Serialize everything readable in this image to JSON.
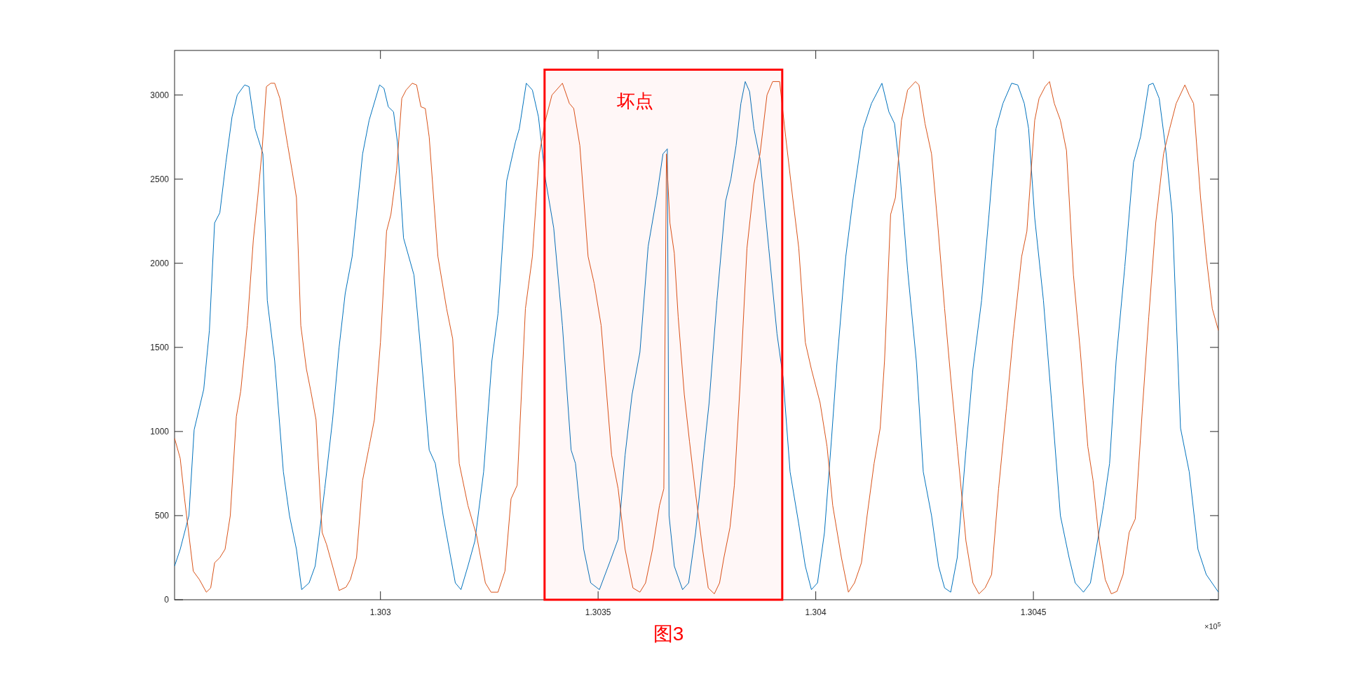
{
  "chart_data": {
    "type": "line",
    "xlim": [
      1.302527,
      1.304925
    ],
    "ylim": [
      0,
      3265
    ],
    "xticks": [
      1.303,
      1.3035,
      1.304,
      1.3045
    ],
    "yticks": [
      0,
      500,
      1000,
      1500,
      2000,
      2500,
      3000
    ],
    "grid": false,
    "marker": "none",
    "line_style": "solid",
    "annotations": [
      "×10$^{5}$",
      "图3"
    ],
    "bands": [
      {
        "axis": "x",
        "from": 1.303377,
        "to": 1.303923,
        "label": "坏点",
        "color": "#ff0000"
      }
    ],
    "series": [
      {
        "color": "#0072bd",
        "x": [
          1.302527,
          1.30254,
          1.30256,
          1.302572,
          1.302594,
          1.302607,
          1.302619,
          1.302631,
          1.302645,
          1.302659,
          1.302671,
          1.302688,
          1.302698,
          1.302712,
          1.30273,
          1.30274,
          1.302757,
          1.302777,
          1.302791,
          1.302807,
          1.302819,
          1.302836,
          1.30285,
          1.30286,
          1.302872,
          1.30289,
          1.302905,
          1.302919,
          1.302935,
          1.302959,
          1.302974,
          1.302998,
          1.303008,
          1.303018,
          1.30303,
          1.303039,
          1.303053,
          1.303077,
          1.303093,
          1.303112,
          1.303126,
          1.303144,
          1.303158,
          1.303172,
          1.303185,
          1.303201,
          1.303217,
          1.303237,
          1.303256,
          1.30327,
          1.30329,
          1.30331,
          1.303319,
          1.303335,
          1.303349,
          1.303363,
          1.303379,
          1.303398,
          1.303418,
          1.303438,
          1.303448,
          1.303467,
          1.303483,
          1.303503,
          1.303527,
          1.303546,
          1.303562,
          1.303578,
          1.303596,
          1.303615,
          1.303635,
          1.303649,
          1.303659,
          1.303663,
          1.303675,
          1.303694,
          1.303708,
          1.303724,
          1.303744,
          1.303755,
          1.303773,
          1.303793,
          1.303805,
          1.303817,
          1.303828,
          1.303838,
          1.303848,
          1.303858,
          1.303872,
          1.303892,
          1.303911,
          1.303925,
          1.303941,
          1.303961,
          1.303976,
          1.30399,
          1.304004,
          1.30402,
          1.304036,
          1.304049,
          1.304069,
          1.304085,
          1.304109,
          1.304128,
          1.304152,
          1.304168,
          1.304181,
          1.304193,
          1.304211,
          1.304231,
          1.304247,
          1.304266,
          1.304282,
          1.304296,
          1.30431,
          1.304325,
          1.304345,
          1.304361,
          1.304381,
          1.304398,
          1.304414,
          1.30443,
          1.30445,
          1.304464,
          1.304479,
          1.304489,
          1.304503,
          1.304523,
          1.304542,
          1.304562,
          1.304582,
          1.304596,
          1.304615,
          1.304631,
          1.304641,
          1.304661,
          1.304675,
          1.30469,
          1.30471,
          1.30473,
          1.304746,
          1.304765,
          1.304775,
          1.304789,
          1.304803,
          1.304819,
          1.304838,
          1.304858,
          1.304878,
          1.304897,
          1.304925
        ],
        "values": [
          200,
          300,
          500,
          1010,
          1250,
          1600,
          2240,
          2300,
          2600,
          2870,
          3000,
          3060,
          3050,
          2800,
          2650,
          1780,
          1420,
          760,
          500,
          300,
          60,
          100,
          200,
          400,
          660,
          1070,
          1500,
          1820,
          2040,
          2650,
          2850,
          3060,
          3040,
          2930,
          2900,
          2720,
          2150,
          1930,
          1470,
          890,
          810,
          500,
          300,
          100,
          60,
          200,
          350,
          760,
          1420,
          1700,
          2490,
          2720,
          2800,
          3070,
          3030,
          2870,
          2500,
          2210,
          1630,
          890,
          810,
          300,
          100,
          60,
          225,
          360,
          860,
          1220,
          1470,
          2100,
          2400,
          2650,
          2680,
          500,
          200,
          60,
          100,
          400,
          900,
          1170,
          1780,
          2370,
          2500,
          2700,
          2950,
          3080,
          3020,
          2800,
          2620,
          2090,
          1580,
          1320,
          760,
          450,
          200,
          60,
          100,
          400,
          950,
          1420,
          2040,
          2370,
          2800,
          2950,
          3070,
          2900,
          2830,
          2550,
          1960,
          1420,
          760,
          500,
          200,
          70,
          45,
          250,
          890,
          1370,
          1780,
          2290,
          2800,
          2950,
          3070,
          3060,
          2950,
          2800,
          2270,
          1780,
          1170,
          500,
          250,
          100,
          45,
          100,
          250,
          560,
          810,
          1420,
          1980,
          2600,
          2750,
          3060,
          3070,
          2980,
          2700,
          2290,
          1020,
          760,
          300,
          150,
          45
        ]
      },
      {
        "color": "#d95319",
        "x": [
          1.302527,
          1.30254,
          1.30255,
          1.30257,
          1.302584,
          1.3026,
          1.30261,
          1.302619,
          1.302631,
          1.302643,
          1.302655,
          1.302669,
          1.302679,
          1.302694,
          1.302708,
          1.302718,
          1.302728,
          1.302738,
          1.302748,
          1.302757,
          1.302769,
          1.302787,
          1.302797,
          1.302807,
          1.302817,
          1.30283,
          1.30284,
          1.302852,
          1.302866,
          1.302876,
          1.30289,
          1.302905,
          1.302921,
          1.302931,
          1.302945,
          1.302959,
          1.302974,
          1.302986,
          1.303,
          1.303014,
          1.303024,
          1.303037,
          1.303049,
          1.303059,
          1.303073,
          1.303083,
          1.303093,
          1.303103,
          1.303112,
          1.303132,
          1.303152,
          1.303166,
          1.303181,
          1.303201,
          1.303221,
          1.303241,
          1.303254,
          1.30327,
          1.303286,
          1.3033,
          1.303314,
          1.303333,
          1.303349,
          1.303365,
          1.303379,
          1.303394,
          1.303418,
          1.303434,
          1.303444,
          1.303458,
          1.303477,
          1.303491,
          1.303507,
          1.303531,
          1.303546,
          1.303562,
          1.30358,
          1.303596,
          1.303609,
          1.303625,
          1.303641,
          1.303651,
          1.303657,
          1.303665,
          1.303675,
          1.303684,
          1.303698,
          1.30371,
          1.303724,
          1.30374,
          1.303753,
          1.303767,
          1.303779,
          1.303789,
          1.303803,
          1.303813,
          1.303826,
          1.303842,
          1.303858,
          1.303872,
          1.303888,
          1.303901,
          1.303917,
          1.303931,
          1.303947,
          1.303961,
          1.303976,
          1.30399,
          1.30401,
          1.304026,
          1.304039,
          1.304059,
          1.304075,
          1.304089,
          1.304105,
          1.304118,
          1.304134,
          1.304148,
          1.304158,
          1.304172,
          1.304183,
          1.304197,
          1.304211,
          1.304229,
          1.304237,
          1.304251,
          1.304266,
          1.30428,
          1.304296,
          1.30431,
          1.304325,
          1.304345,
          1.304361,
          1.304375,
          1.304389,
          1.304404,
          1.30442,
          1.304438,
          1.304454,
          1.304473,
          1.304485,
          1.304503,
          1.304513,
          1.304527,
          1.304537,
          1.304548,
          1.304562,
          1.304576,
          1.304592,
          1.304608,
          1.304625,
          1.304637,
          1.304651,
          1.304665,
          1.304679,
          1.304692,
          1.304706,
          1.30472,
          1.304734,
          1.30475,
          1.304765,
          1.304781,
          1.304799,
          1.304813,
          1.304828,
          1.304848,
          1.304858,
          1.304868,
          1.304884,
          1.304897,
          1.304911,
          1.304925
        ],
        "values": [
          960,
          840,
          600,
          170,
          120,
          45,
          70,
          220,
          250,
          300,
          500,
          1090,
          1240,
          1630,
          2140,
          2390,
          2670,
          3050,
          3070,
          3070,
          2980,
          2700,
          2550,
          2390,
          1630,
          1370,
          1240,
          1070,
          400,
          330,
          200,
          55,
          75,
          120,
          250,
          710,
          910,
          1070,
          1530,
          2190,
          2290,
          2550,
          2980,
          3030,
          3070,
          3060,
          2930,
          2920,
          2750,
          2040,
          1730,
          1550,
          810,
          560,
          380,
          100,
          45,
          45,
          170,
          600,
          680,
          1730,
          2040,
          2650,
          2850,
          3000,
          3070,
          2950,
          2920,
          2700,
          2040,
          1880,
          1630,
          860,
          660,
          300,
          70,
          45,
          100,
          300,
          560,
          660,
          2650,
          2240,
          2060,
          1680,
          1220,
          940,
          630,
          300,
          70,
          35,
          100,
          250,
          430,
          680,
          1270,
          2090,
          2470,
          2650,
          3000,
          3080,
          3080,
          2750,
          2390,
          2090,
          1530,
          1370,
          1170,
          910,
          560,
          250,
          45,
          100,
          220,
          500,
          810,
          1020,
          1420,
          2290,
          2390,
          2850,
          3030,
          3080,
          3060,
          2830,
          2650,
          2240,
          1730,
          1320,
          910,
          350,
          100,
          35,
          70,
          150,
          660,
          1140,
          1580,
          2040,
          2190,
          2850,
          2980,
          3050,
          3080,
          2950,
          2850,
          2670,
          1930,
          1470,
          910,
          710,
          350,
          120,
          35,
          50,
          150,
          400,
          480,
          1120,
          1680,
          2240,
          2650,
          2800,
          2950,
          3060,
          3000,
          2950,
          2390,
          2040,
          1730,
          1600
        ]
      }
    ]
  }
}
